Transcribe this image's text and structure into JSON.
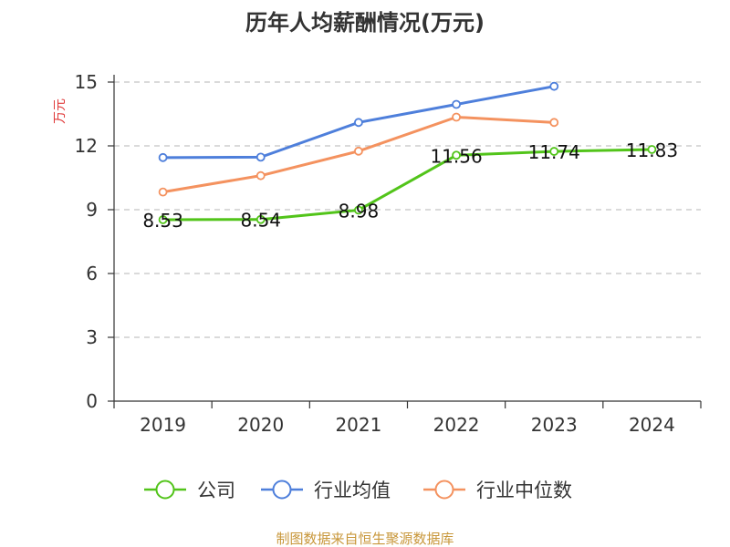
{
  "chart_data": {
    "type": "line",
    "title": "历年人均薪酬情况(万元)",
    "ylabel": "万元",
    "xlabel": "",
    "categories": [
      "2019",
      "2020",
      "2021",
      "2022",
      "2023",
      "2024"
    ],
    "ylim": [
      0,
      15
    ],
    "yticks": [
      0,
      3,
      6,
      9,
      12,
      15
    ],
    "grid": true,
    "legend_position": "bottom",
    "series": [
      {
        "name": "公司",
        "color": "#52c41a",
        "values": [
          8.53,
          8.54,
          8.98,
          11.56,
          11.74,
          11.83
        ],
        "labels": [
          "8.53",
          "8.54",
          "8.98",
          "11.56",
          "11.74",
          "11.83"
        ]
      },
      {
        "name": "行业均值",
        "color": "#4e7fdb",
        "values": [
          11.45,
          11.47,
          13.1,
          13.95,
          14.8,
          null
        ]
      },
      {
        "name": "行业中位数",
        "color": "#f4925f",
        "values": [
          9.83,
          10.6,
          11.75,
          13.35,
          13.1,
          null
        ]
      }
    ],
    "source": "制图数据来自恒生聚源数据库"
  }
}
